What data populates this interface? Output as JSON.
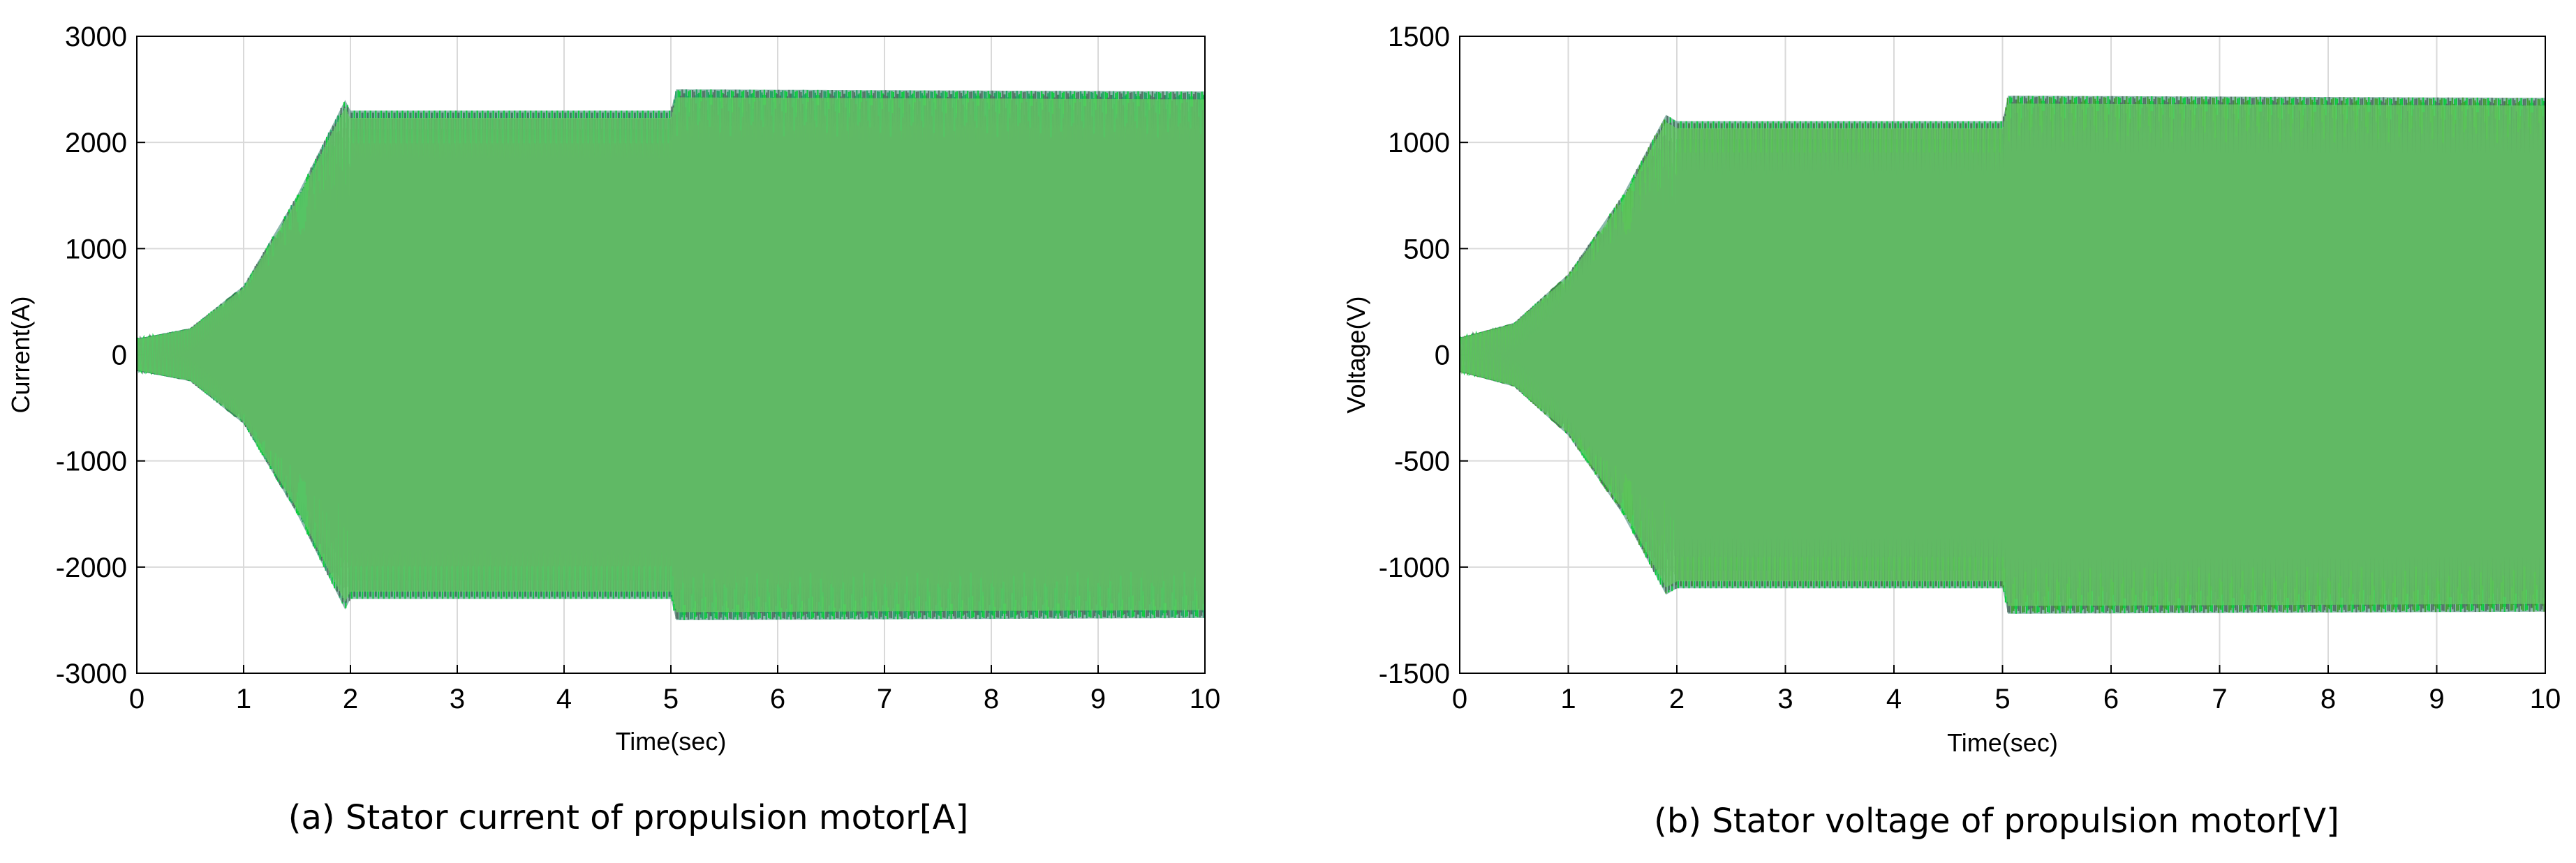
{
  "chart_data": [
    {
      "id": "a",
      "type": "line",
      "caption": "(a) Stator current of propulsion motor[A]",
      "xlabel": "Time(sec)",
      "ylabel": "Current(A)",
      "xlim": [
        0,
        10
      ],
      "ylim": [
        -3000,
        3000
      ],
      "xticks": [
        "0",
        "1",
        "2",
        "3",
        "4",
        "5",
        "6",
        "7",
        "8",
        "9",
        "10"
      ],
      "yticks": [
        "3000",
        "2000",
        "1000",
        "0",
        "-1000",
        "-2000",
        "-3000"
      ],
      "grid": true,
      "envelope": [
        {
          "x": 0,
          "y": 150
        },
        {
          "x": 0.5,
          "y": 250
        },
        {
          "x": 1,
          "y": 650
        },
        {
          "x": 1.5,
          "y": 1500
        },
        {
          "x": 1.95,
          "y": 2400
        },
        {
          "x": 2.0,
          "y": 2300
        },
        {
          "x": 5.0,
          "y": 2300
        },
        {
          "x": 5.05,
          "y": 2500
        },
        {
          "x": 10,
          "y": 2480
        }
      ],
      "colors": [
        "#00cc33",
        "#1a9e5c",
        "#4d6b5e",
        "#66cc66",
        "#8fd68f"
      ]
    },
    {
      "id": "b",
      "type": "line",
      "caption": "(b) Stator voltage of propulsion motor[V]",
      "xlabel": "Time(sec)",
      "ylabel": "Voltage(V)",
      "xlim": [
        0,
        10
      ],
      "ylim": [
        -1500,
        1500
      ],
      "xticks": [
        "0",
        "1",
        "2",
        "3",
        "4",
        "5",
        "6",
        "7",
        "8",
        "9",
        "10"
      ],
      "yticks": [
        "1500",
        "1000",
        "500",
        "0",
        "-500",
        "-1000",
        "-1500"
      ],
      "grid": true,
      "envelope": [
        {
          "x": 0,
          "y": 80
        },
        {
          "x": 0.5,
          "y": 150
        },
        {
          "x": 1,
          "y": 380
        },
        {
          "x": 1.5,
          "y": 750
        },
        {
          "x": 1.9,
          "y": 1130
        },
        {
          "x": 2.0,
          "y": 1100
        },
        {
          "x": 5.0,
          "y": 1100
        },
        {
          "x": 5.05,
          "y": 1220
        },
        {
          "x": 10,
          "y": 1210
        }
      ],
      "colors": [
        "#00cc33",
        "#3a9a2a",
        "#4d6b5e",
        "#66cc66",
        "#88e088"
      ]
    }
  ]
}
